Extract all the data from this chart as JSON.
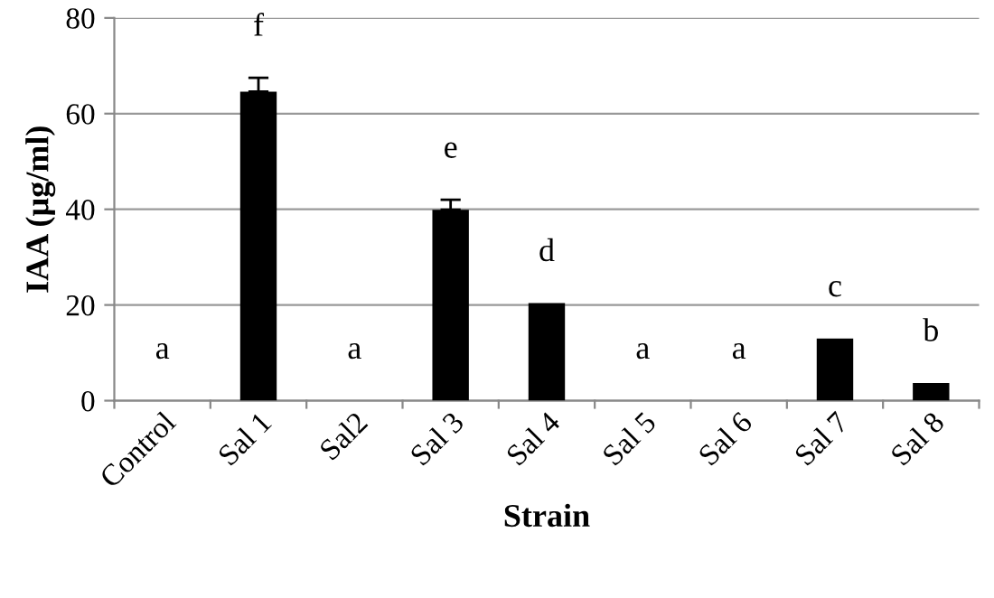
{
  "chart_data": {
    "type": "bar",
    "xlabel": "Strain",
    "ylabel": "IAA (µg/ml)",
    "categories": [
      "Control",
      "Sal 1",
      "Sal2",
      "Sal 3",
      "Sal 4",
      "Sal 5",
      "Sal 6",
      "Sal 7",
      "Sal 8"
    ],
    "values": [
      0,
      64.6,
      0,
      39.9,
      20.4,
      0,
      0,
      13.0,
      3.7
    ],
    "errors": [
      null,
      2.9,
      null,
      2.1,
      null,
      null,
      null,
      null,
      null
    ],
    "color": "#000000",
    "ylim": [
      0,
      80
    ],
    "yticks": [
      0,
      20,
      40,
      60,
      80
    ],
    "grid": "y",
    "annotations": [
      "a",
      "f",
      "a",
      "e",
      "d",
      "a",
      "a",
      "c",
      "b"
    ]
  }
}
